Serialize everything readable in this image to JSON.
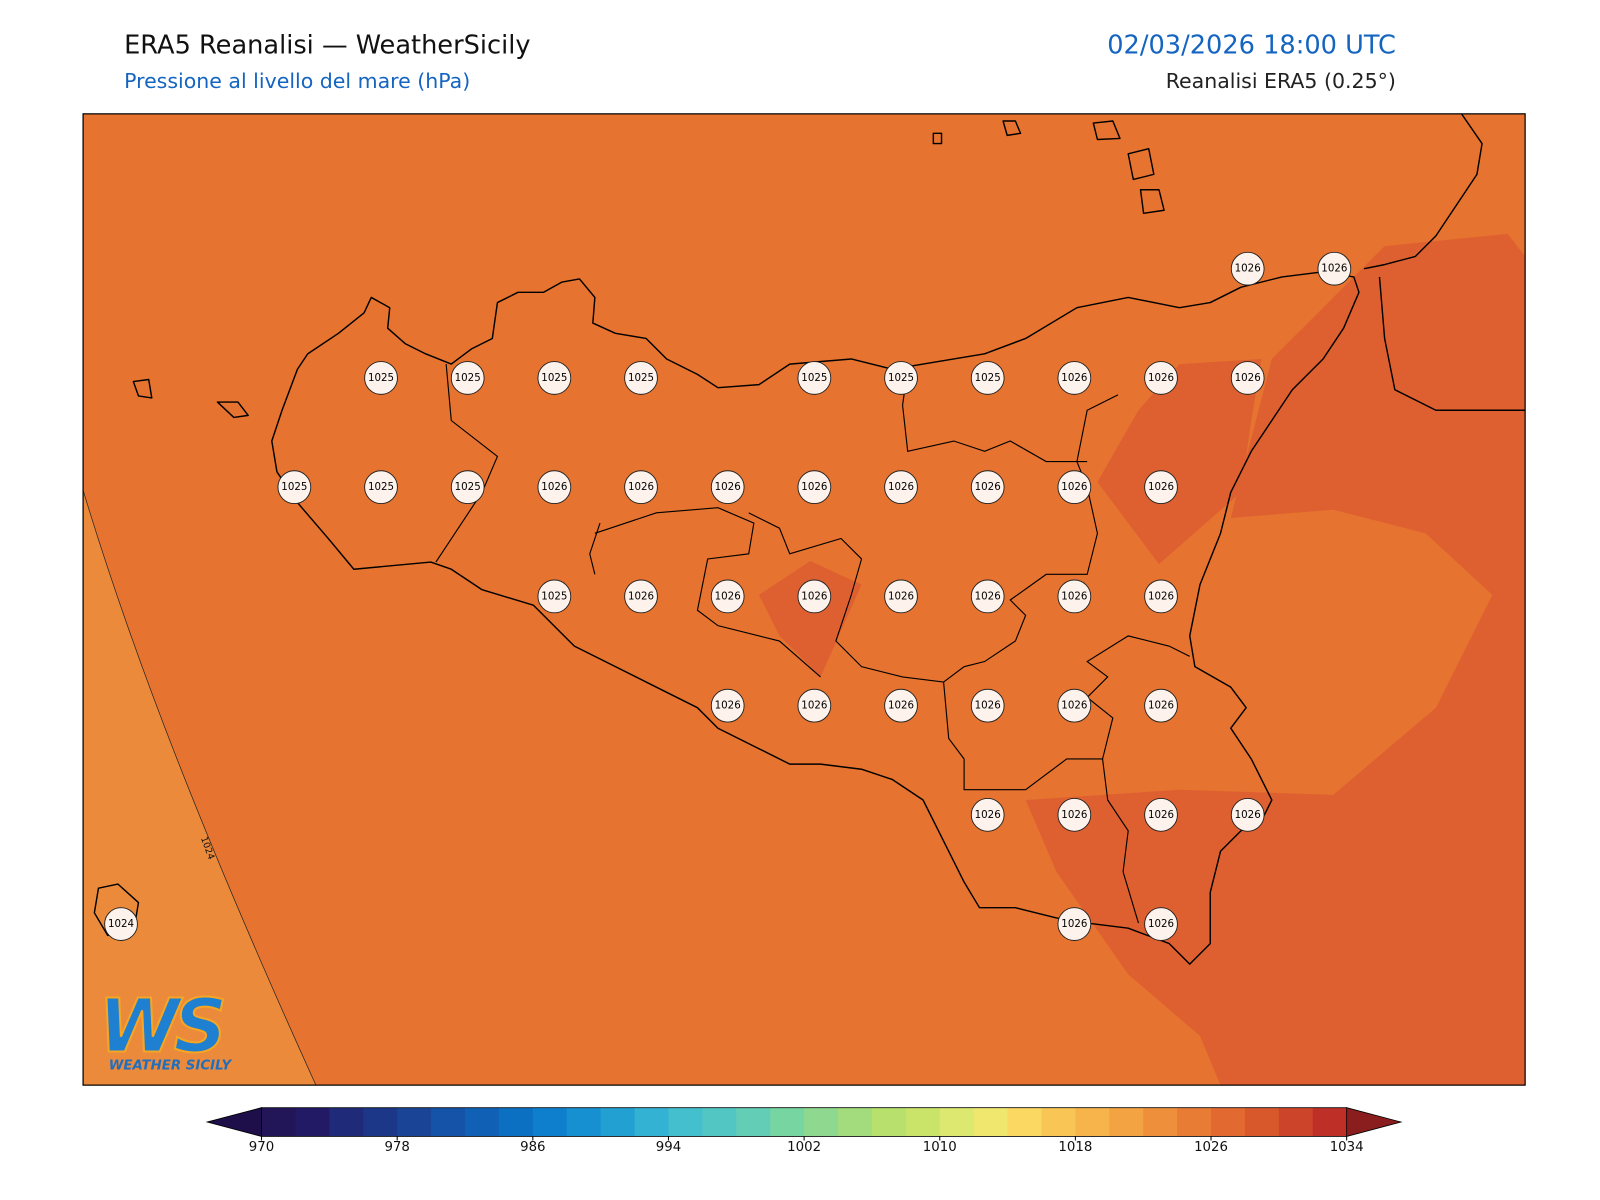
{
  "header": {
    "title": "ERA5 Reanalisi — WeatherSicily",
    "subtitle": "Pressione al livello del mare (hPa)",
    "datetime": "02/03/2026 18:00 UTC",
    "source": "Reanalisi ERA5 (0.25°)"
  },
  "map": {
    "contour_label": 1024,
    "pressure_grid": [
      [
        null,
        null,
        null,
        null,
        null,
        null,
        null,
        null,
        null,
        null,
        null,
        null,
        null,
        1026,
        1026
      ],
      [
        null,
        null,
        null,
        1025,
        1025,
        1025,
        1025,
        null,
        1025,
        1025,
        1025,
        1026,
        1026,
        1026,
        null
      ],
      [
        null,
        null,
        1025,
        1025,
        1025,
        1026,
        1026,
        1026,
        1026,
        1026,
        1026,
        1026,
        1026,
        null,
        null
      ],
      [
        null,
        null,
        null,
        null,
        null,
        1025,
        1026,
        1026,
        1026,
        1026,
        1026,
        1026,
        1026,
        null,
        null
      ],
      [
        null,
        null,
        null,
        null,
        null,
        null,
        null,
        1026,
        1026,
        1026,
        1026,
        1026,
        1026,
        null,
        null
      ],
      [
        null,
        null,
        null,
        null,
        null,
        null,
        null,
        null,
        null,
        null,
        1026,
        1026,
        1026,
        1026,
        null
      ],
      [
        1024,
        null,
        null,
        null,
        null,
        null,
        null,
        null,
        null,
        null,
        null,
        1026,
        1026,
        null,
        null
      ]
    ]
  },
  "colorbar": {
    "lim": [
      970,
      1034
    ],
    "ticks": [
      970,
      978,
      986,
      994,
      1002,
      1010,
      1018,
      1026,
      1034
    ],
    "colors": [
      "#221558",
      "#231a66",
      "#1f2a78",
      "#1c3788",
      "#1a4596",
      "#1553a8",
      "#1061b5",
      "#0c70c2",
      "#0e7fcc",
      "#1690d0",
      "#22a0d2",
      "#34b2d3",
      "#44bfcd",
      "#52c6c2",
      "#63ceb5",
      "#77d5a2",
      "#8ed88f",
      "#a2dc7c",
      "#b7e06d",
      "#cae46a",
      "#dce86f",
      "#f0e76f",
      "#fbd862",
      "#f9c655",
      "#f6b44b",
      "#f3a342",
      "#ee903b",
      "#e97c35",
      "#e26a30",
      "#d8582c",
      "#cc4429",
      "#be3027"
    ],
    "extend_colors": [
      "#1e0f4a",
      "#8a1e1e"
    ]
  },
  "logo": {
    "mark": "WS",
    "caption": "WEATHER SICILY"
  }
}
